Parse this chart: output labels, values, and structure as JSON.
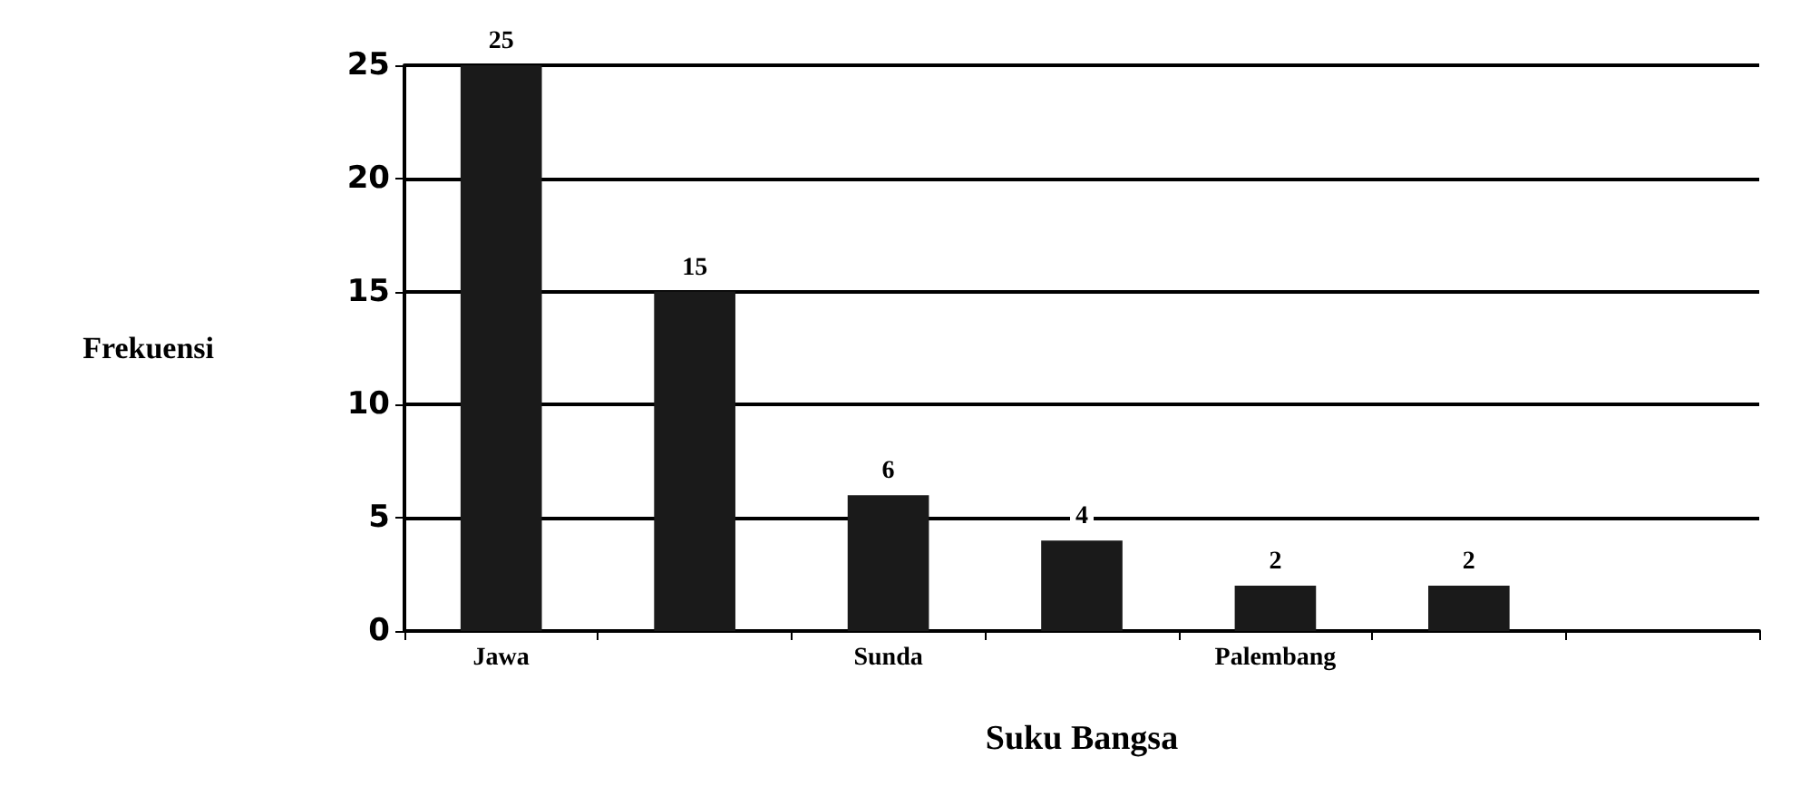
{
  "chart_data": {
    "type": "bar",
    "xlabel": "Suku Bangsa",
    "ylabel": "Frekuensi",
    "categories": [
      "Jawa",
      null,
      "Sunda",
      null,
      "Palembang",
      null,
      null
    ],
    "values": [
      25,
      15,
      6,
      4,
      2,
      2,
      null
    ],
    "color": "#1a1a1a",
    "ylim": [
      0,
      25
    ],
    "yticks": [
      0,
      5,
      10,
      15,
      20,
      25
    ],
    "grid": "y",
    "data_labels": true
  }
}
